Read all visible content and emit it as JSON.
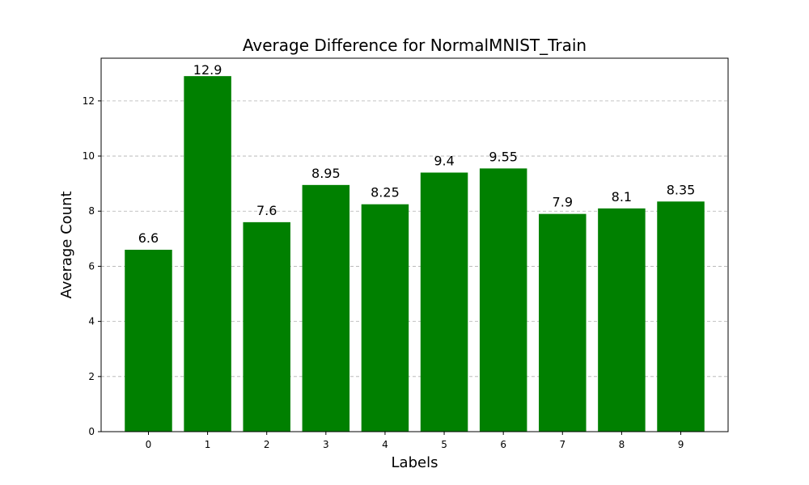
{
  "chart_data": {
    "type": "bar",
    "title": "Average Difference for NormalMNIST_Train",
    "xlabel": "Labels",
    "ylabel": "Average Count",
    "categories": [
      "0",
      "1",
      "2",
      "3",
      "4",
      "5",
      "6",
      "7",
      "8",
      "9"
    ],
    "values": [
      6.6,
      12.9,
      7.6,
      8.95,
      8.25,
      9.4,
      9.55,
      7.9,
      8.1,
      8.35
    ],
    "data_labels": [
      "6.6",
      "12.9",
      "7.6",
      "8.95",
      "8.25",
      "9.4",
      "9.55",
      "7.9",
      "8.1",
      "8.35"
    ],
    "ylim": [
      0,
      13.55
    ],
    "yticks": [
      0,
      2,
      4,
      6,
      8,
      10,
      12
    ],
    "ytick_labels": [
      "0",
      "2",
      "4",
      "6",
      "8",
      "10",
      "12"
    ],
    "grid": "y-axis, dashed",
    "legend": "none",
    "bar_color": "#008000"
  }
}
